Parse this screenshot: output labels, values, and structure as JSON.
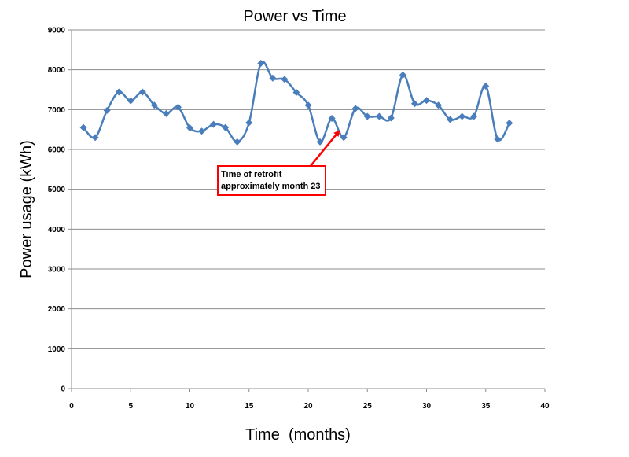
{
  "chart_data": {
    "type": "line",
    "title": "Power vs Time",
    "xlabel": "Time  (months)",
    "ylabel": "Power usage (kWh)",
    "xlim": [
      0,
      40
    ],
    "ylim": [
      0,
      9000
    ],
    "xticks": [
      0,
      5,
      10,
      15,
      20,
      25,
      30,
      35,
      40
    ],
    "yticks": [
      0,
      1000,
      2000,
      3000,
      4000,
      5000,
      6000,
      7000,
      8000,
      9000
    ],
    "grid": "horizontal",
    "legend": "none",
    "smooth": true,
    "series": [
      {
        "color": "#4a7ebb",
        "x": [
          1,
          2,
          3,
          4,
          5,
          6,
          7,
          8,
          9,
          10,
          11,
          12,
          13,
          14,
          15,
          16,
          17,
          18,
          19,
          20,
          21,
          22,
          23,
          24,
          25,
          26,
          27,
          28,
          29,
          30,
          31,
          32,
          33,
          34,
          35,
          36,
          37
        ],
        "y": [
          6550,
          6300,
          6980,
          7440,
          7220,
          7440,
          7110,
          6900,
          7060,
          6540,
          6460,
          6630,
          6550,
          6190,
          6670,
          8160,
          7790,
          7760,
          7430,
          7110,
          6190,
          6780,
          6300,
          7030,
          6830,
          6830,
          6790,
          7870,
          7150,
          7230,
          7110,
          6750,
          6830,
          6830,
          7590,
          6260,
          6660
        ]
      }
    ],
    "annotations": [
      {
        "lines": [
          "Time of retrofit",
          "approximately month 23"
        ],
        "arrow_to": [
          23,
          6300
        ],
        "arrow_color": "#ff0000",
        "box_border": "#ff0000"
      }
    ]
  }
}
